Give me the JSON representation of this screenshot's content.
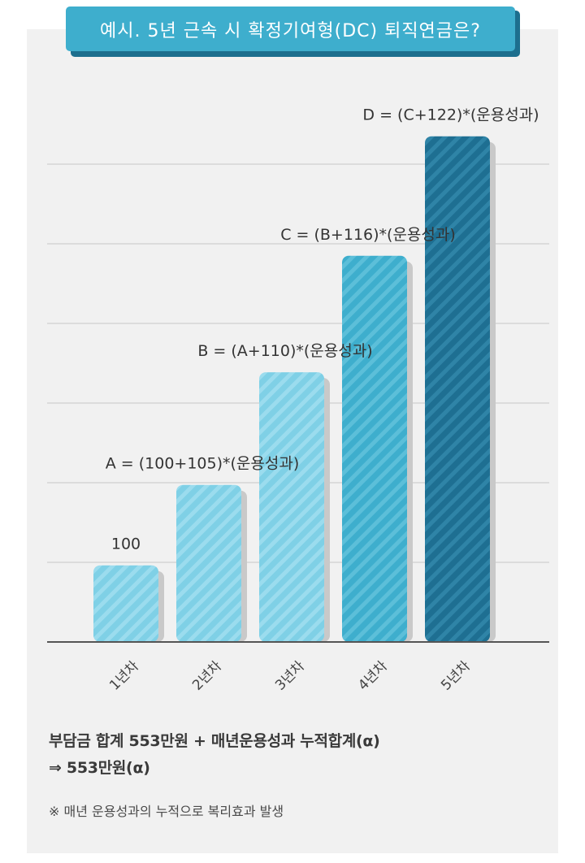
{
  "title": "예시. 5년 근속 시 확정기여형(DC) 퇴직연금은?",
  "chart_data": {
    "type": "bar",
    "categories": [
      "1년차",
      "2년차",
      "3년차",
      "4년차",
      "5년차"
    ],
    "values": [
      100,
      205,
      352,
      504,
      660
    ],
    "value_labels": [
      "100",
      "A = (100+105)*(운용성과)",
      "B = (A+110)*(운용성과)",
      "C = (B+116)*(운용성과)",
      "D = (C+122)*(운용성과)"
    ],
    "ylim": [
      0,
      700
    ],
    "grid": true,
    "colors": [
      "#7fd0e6",
      "#7fd0e6",
      "#7fd0e6",
      "#3eaecd",
      "#1e6f92"
    ],
    "shadow_color": "#c9c9c9"
  },
  "summary": {
    "line1": "부담금 합계 553만원 + 매년운용성과 누적합계(α)",
    "line2": "⇒ 553만원(α)"
  },
  "note": "※ 매년 운용성과의 누적으로 복리효과 발생"
}
